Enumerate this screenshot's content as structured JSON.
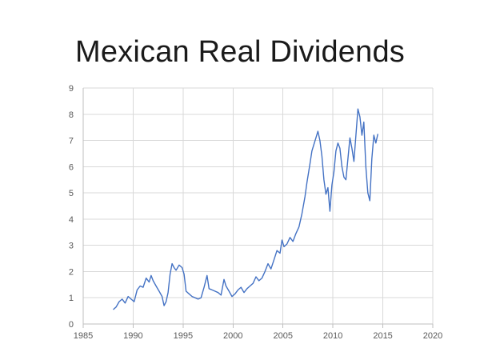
{
  "chart_data": {
    "type": "line",
    "title": "Mexican Real Dividends",
    "xlabel": "",
    "ylabel": "",
    "xlim": [
      1985,
      2020
    ],
    "ylim": [
      0,
      9
    ],
    "x_ticks": [
      "1985",
      "1990",
      "1995",
      "2000",
      "2005",
      "2010",
      "2015",
      "2020"
    ],
    "y_ticks": [
      "0",
      "1",
      "2",
      "3",
      "4",
      "5",
      "6",
      "7",
      "8",
      "9"
    ],
    "grid": "horizontal and vertical",
    "legend": "none",
    "series": [
      {
        "color": "#4472c4",
        "points": [
          [
            1988.0,
            0.55
          ],
          [
            1988.3,
            0.65
          ],
          [
            1988.6,
            0.85
          ],
          [
            1988.9,
            0.95
          ],
          [
            1989.2,
            0.8
          ],
          [
            1989.5,
            1.05
          ],
          [
            1989.8,
            0.95
          ],
          [
            1990.1,
            0.85
          ],
          [
            1990.4,
            1.3
          ],
          [
            1990.7,
            1.45
          ],
          [
            1991.0,
            1.4
          ],
          [
            1991.3,
            1.75
          ],
          [
            1991.6,
            1.6
          ],
          [
            1991.8,
            1.85
          ],
          [
            1992.0,
            1.65
          ],
          [
            1992.3,
            1.45
          ],
          [
            1992.6,
            1.25
          ],
          [
            1992.9,
            1.05
          ],
          [
            1993.1,
            0.7
          ],
          [
            1993.3,
            0.85
          ],
          [
            1993.5,
            1.2
          ],
          [
            1993.7,
            1.9
          ],
          [
            1993.9,
            2.3
          ],
          [
            1994.1,
            2.15
          ],
          [
            1994.3,
            2.05
          ],
          [
            1994.6,
            2.25
          ],
          [
            1994.9,
            2.15
          ],
          [
            1995.1,
            1.9
          ],
          [
            1995.3,
            1.25
          ],
          [
            1995.6,
            1.15
          ],
          [
            1995.9,
            1.05
          ],
          [
            1996.2,
            1.0
          ],
          [
            1996.5,
            0.95
          ],
          [
            1996.8,
            1.0
          ],
          [
            1997.1,
            1.4
          ],
          [
            1997.4,
            1.85
          ],
          [
            1997.6,
            1.35
          ],
          [
            1997.9,
            1.3
          ],
          [
            1998.2,
            1.25
          ],
          [
            1998.5,
            1.2
          ],
          [
            1998.8,
            1.1
          ],
          [
            1999.1,
            1.7
          ],
          [
            1999.3,
            1.45
          ],
          [
            1999.6,
            1.25
          ],
          [
            1999.9,
            1.05
          ],
          [
            2000.2,
            1.15
          ],
          [
            2000.5,
            1.3
          ],
          [
            2000.8,
            1.4
          ],
          [
            2001.1,
            1.2
          ],
          [
            2001.4,
            1.35
          ],
          [
            2001.7,
            1.45
          ],
          [
            2002.0,
            1.55
          ],
          [
            2002.3,
            1.8
          ],
          [
            2002.6,
            1.65
          ],
          [
            2002.9,
            1.75
          ],
          [
            2003.2,
            2.0
          ],
          [
            2003.5,
            2.3
          ],
          [
            2003.8,
            2.1
          ],
          [
            2004.1,
            2.45
          ],
          [
            2004.4,
            2.8
          ],
          [
            2004.7,
            2.7
          ],
          [
            2004.9,
            3.2
          ],
          [
            2005.1,
            2.95
          ],
          [
            2005.4,
            3.05
          ],
          [
            2005.7,
            3.3
          ],
          [
            2006.0,
            3.15
          ],
          [
            2006.3,
            3.45
          ],
          [
            2006.6,
            3.7
          ],
          [
            2006.9,
            4.2
          ],
          [
            2007.2,
            4.85
          ],
          [
            2007.4,
            5.4
          ],
          [
            2007.7,
            6.1
          ],
          [
            2007.9,
            6.6
          ],
          [
            2008.1,
            6.85
          ],
          [
            2008.3,
            7.1
          ],
          [
            2008.5,
            7.35
          ],
          [
            2008.7,
            7.0
          ],
          [
            2008.9,
            6.4
          ],
          [
            2009.1,
            5.5
          ],
          [
            2009.3,
            4.95
          ],
          [
            2009.5,
            5.2
          ],
          [
            2009.7,
            4.3
          ],
          [
            2009.9,
            5.3
          ],
          [
            2010.1,
            5.8
          ],
          [
            2010.3,
            6.6
          ],
          [
            2010.5,
            6.9
          ],
          [
            2010.7,
            6.7
          ],
          [
            2010.9,
            6.0
          ],
          [
            2011.1,
            5.6
          ],
          [
            2011.3,
            5.5
          ],
          [
            2011.5,
            6.3
          ],
          [
            2011.7,
            7.1
          ],
          [
            2011.9,
            6.7
          ],
          [
            2012.1,
            6.2
          ],
          [
            2012.3,
            7.2
          ],
          [
            2012.5,
            8.2
          ],
          [
            2012.7,
            7.9
          ],
          [
            2012.9,
            7.2
          ],
          [
            2013.1,
            7.7
          ],
          [
            2013.3,
            6.0
          ],
          [
            2013.5,
            5.0
          ],
          [
            2013.7,
            4.7
          ],
          [
            2013.9,
            6.3
          ],
          [
            2014.1,
            7.2
          ],
          [
            2014.3,
            6.9
          ],
          [
            2014.5,
            7.25
          ]
        ]
      }
    ]
  }
}
